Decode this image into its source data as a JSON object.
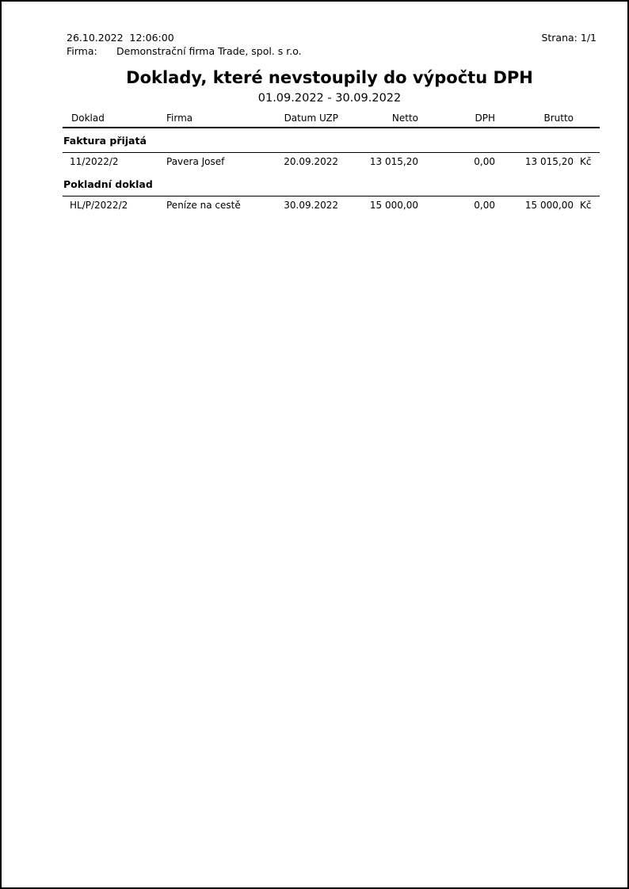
{
  "header": {
    "datetime": "26.10.2022  12:06:00",
    "page_label": "Strana:",
    "page_number": "1/1",
    "company_label": "Firma:",
    "company_name": "Demonstrační firma Trade, spol. s r.o.",
    "title": "Doklady, které nevstoupily do výpočtu DPH",
    "period": "01.09.2022 - 30.09.2022"
  },
  "table": {
    "headers": [
      "Doklad",
      "Firma",
      "Datum UZP",
      "Netto",
      "DPH",
      "Brutto"
    ],
    "sections": [
      {
        "name": "Faktura přijatá",
        "rows": [
          {
            "doklad": "11/2022/2",
            "firma": "Pavera Josef",
            "datum_uzp": "20.09.2022",
            "netto": "13 015,20",
            "dph": "0,00",
            "brutto": "13 015,20",
            "mena": "Kč"
          }
        ]
      },
      {
        "name": "Pokladní doklad",
        "rows": [
          {
            "doklad": "HL/P/2022/2",
            "firma": "Peníze na cestě",
            "datum_uzp": "30.09.2022",
            "netto": "15 000,00",
            "dph": "0,00",
            "brutto": "15 000,00",
            "mena": "Kč"
          }
        ]
      }
    ]
  }
}
